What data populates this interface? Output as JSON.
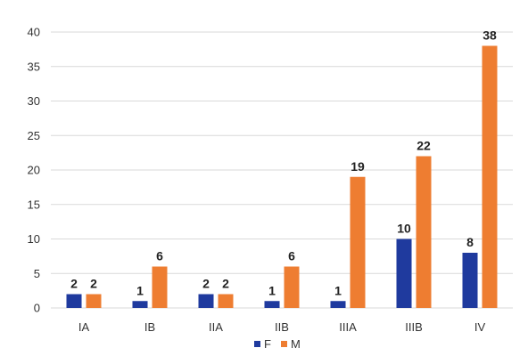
{
  "chart_data": {
    "type": "bar",
    "categories": [
      "IA",
      "IB",
      "IIA",
      "IIB",
      "IIIA",
      "IIIB",
      "IV"
    ],
    "series": [
      {
        "name": "F",
        "values": [
          2,
          1,
          2,
          1,
          1,
          10,
          8
        ],
        "color": "#1f3a9e"
      },
      {
        "name": "M",
        "values": [
          2,
          6,
          2,
          6,
          19,
          22,
          38
        ],
        "color": "#ee7d31"
      }
    ],
    "ylim": [
      0,
      40
    ],
    "yticks": [
      0,
      5,
      10,
      15,
      20,
      25,
      30,
      35,
      40
    ],
    "grid": true,
    "legend_position": "bottom",
    "data_labels": true
  }
}
